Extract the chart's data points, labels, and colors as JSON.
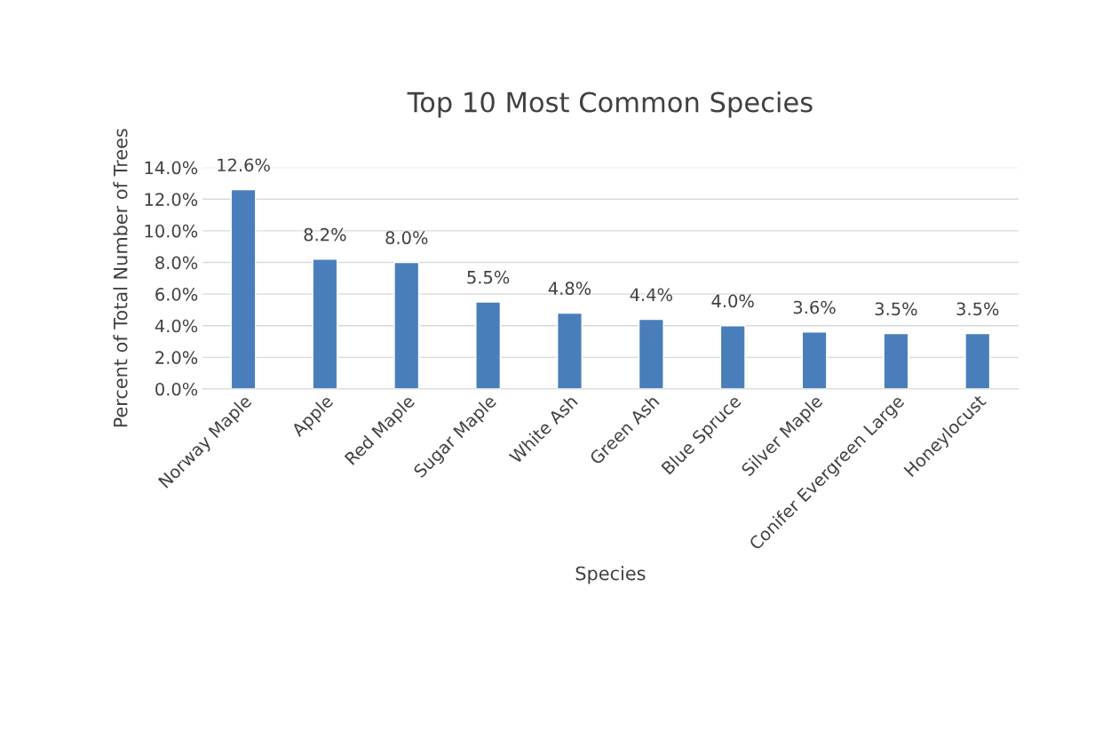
{
  "chart_data": {
    "type": "bar",
    "title": "Top 10 Most Common Species",
    "xlabel": "Species",
    "ylabel": "Percent of Total Number of Trees",
    "categories": [
      "Norway Maple",
      "Apple",
      "Red Maple",
      "Sugar Maple",
      "White Ash",
      "Green Ash",
      "Blue Spruce",
      "Silver Maple",
      "Conifer Evergreen Large",
      "Honeylocust"
    ],
    "values": [
      12.6,
      8.2,
      8.0,
      5.5,
      4.8,
      4.4,
      4.0,
      3.6,
      3.5,
      3.5
    ],
    "value_labels": [
      "12.6%",
      "8.2%",
      "8.0%",
      "5.5%",
      "4.8%",
      "4.4%",
      "4.0%",
      "3.6%",
      "3.5%",
      "3.5%"
    ],
    "color": "#4a7ebb",
    "ylim": [
      0,
      14
    ],
    "yticks": [
      {
        "value": 0,
        "label": "0.0%"
      },
      {
        "value": 2,
        "label": "2.0%"
      },
      {
        "value": 4,
        "label": "4.0%"
      },
      {
        "value": 6,
        "label": "6.0%"
      },
      {
        "value": 8,
        "label": "8.0%"
      },
      {
        "value": 10,
        "label": "10.0%"
      },
      {
        "value": 12,
        "label": "12.0%"
      },
      {
        "value": 14,
        "label": "14.0%"
      }
    ],
    "grid": "y",
    "legend": false
  }
}
